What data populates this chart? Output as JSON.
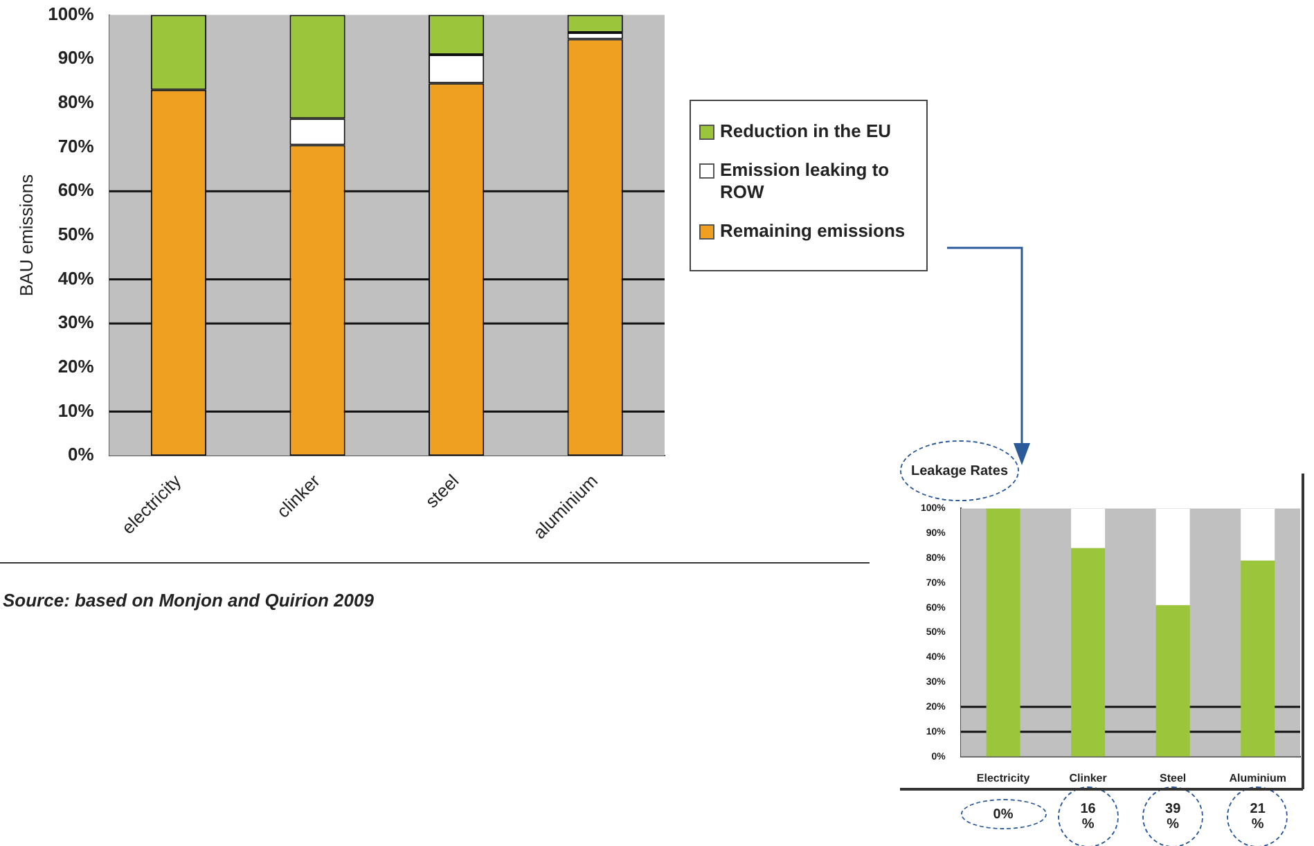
{
  "chart_data": [
    {
      "type": "bar",
      "ylabel": "BAU emissions",
      "categories": [
        "electricity",
        "clinker",
        "steel",
        "aluminium"
      ],
      "stacked": true,
      "series": [
        {
          "name": "Remaining emissions",
          "color": "#f0a020",
          "values": [
            83,
            70.5,
            84.5,
            94.5
          ]
        },
        {
          "name": "Emission leaking to ROW",
          "color": "#ffffff",
          "values": [
            0,
            6,
            6.5,
            1.5
          ]
        },
        {
          "name": "Reduction in the EU",
          "color": "#9bc53b",
          "values": [
            17,
            23.5,
            9,
            4
          ]
        }
      ],
      "ylim": [
        0,
        100
      ],
      "yticks": [
        {
          "value": 0,
          "label": "0%"
        },
        {
          "value": 10,
          "label": "10%"
        },
        {
          "value": 20,
          "label": "20%"
        },
        {
          "value": 30,
          "label": "30%"
        },
        {
          "value": 40,
          "label": "40%"
        },
        {
          "value": 50,
          "label": "50%"
        },
        {
          "value": 60,
          "label": "60%"
        },
        {
          "value": 70,
          "label": "70%"
        },
        {
          "value": 80,
          "label": "80%"
        },
        {
          "value": 90,
          "label": "90%"
        },
        {
          "value": 100,
          "label": "100%"
        }
      ],
      "ref_lines": [
        {
          "axis": "y",
          "value": 10
        },
        {
          "axis": "y",
          "value": 30
        },
        {
          "axis": "y",
          "value": 40
        },
        {
          "axis": "y",
          "value": 60
        }
      ],
      "grid": false,
      "legend": "right",
      "annotations": [
        "Source: based on Monjon and Quirion 2009"
      ]
    },
    {
      "type": "bar",
      "title": "Leakage Rates",
      "categories": [
        "Electricity",
        "Clinker",
        "Steel",
        "Aluminium"
      ],
      "stacked": true,
      "series": [
        {
          "color": "#9bc53b",
          "values": [
            100,
            84,
            61,
            79
          ]
        },
        {
          "color": "#ffffff",
          "values": [
            0,
            16,
            39,
            21
          ]
        }
      ],
      "ylim": [
        0,
        100
      ],
      "yticks": [
        {
          "value": 0,
          "label": "0%"
        },
        {
          "value": 10,
          "label": "10%"
        },
        {
          "value": 20,
          "label": "20%"
        },
        {
          "value": 30,
          "label": "30%"
        },
        {
          "value": 40,
          "label": "40%"
        },
        {
          "value": 50,
          "label": "50%"
        },
        {
          "value": 60,
          "label": "60%"
        },
        {
          "value": 70,
          "label": "70%"
        },
        {
          "value": 80,
          "label": "80%"
        },
        {
          "value": 90,
          "label": "90%"
        },
        {
          "value": 100,
          "label": "100%"
        }
      ],
      "ref_lines": [
        {
          "axis": "y",
          "value": 10
        },
        {
          "axis": "y",
          "value": 20
        }
      ],
      "grid": false,
      "legend": false,
      "annotations": [
        "0%",
        "16 %",
        "39 %",
        "21 %"
      ]
    }
  ]
}
